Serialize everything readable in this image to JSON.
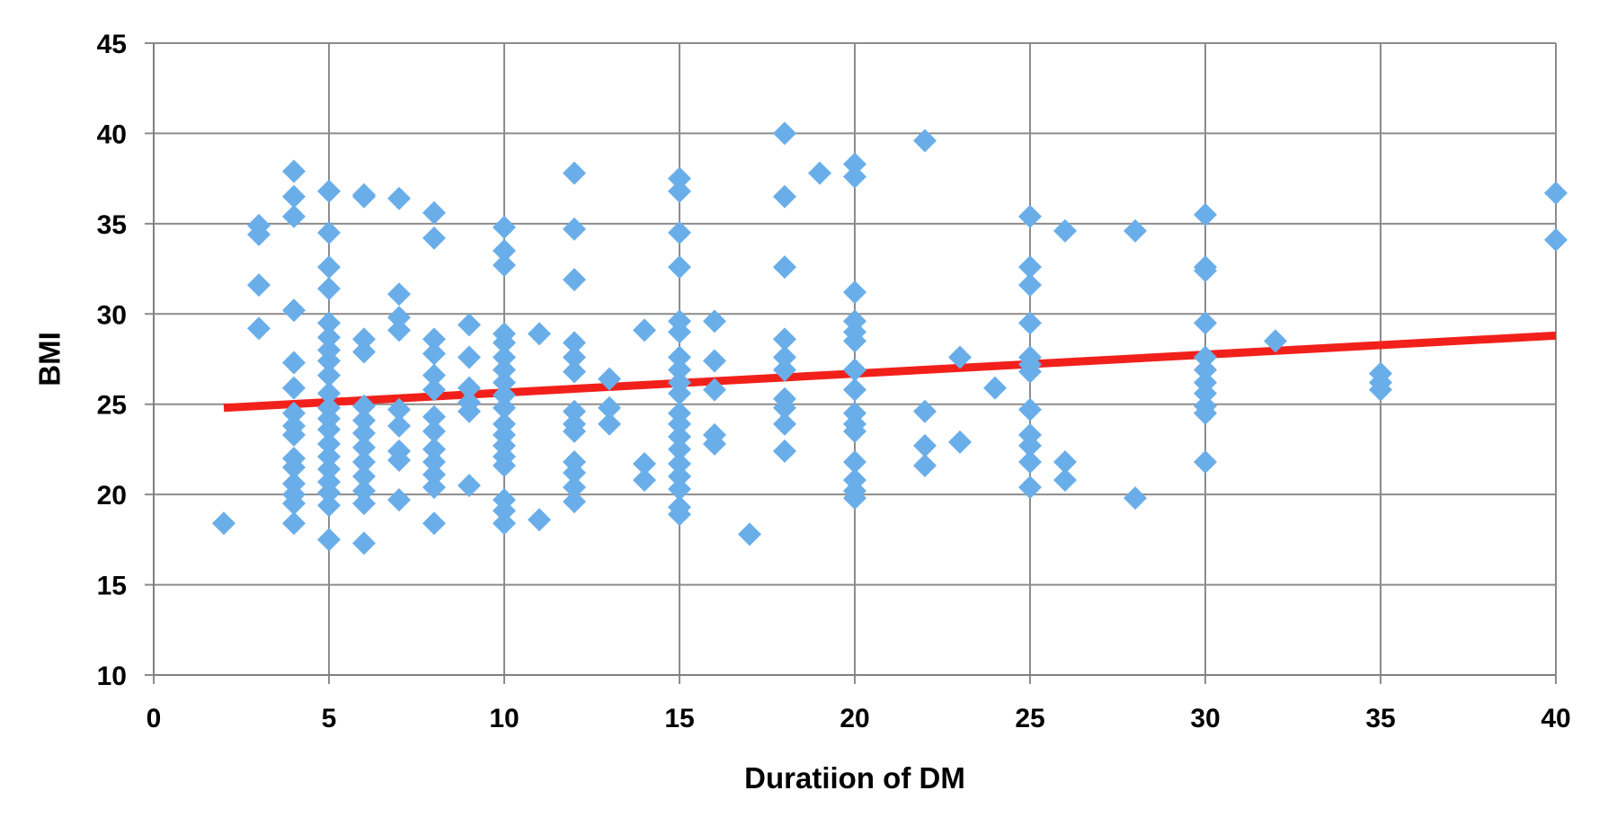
{
  "chart_data": {
    "type": "scatter",
    "xlabel": "Duratiion  of DM",
    "ylabel": "BMI",
    "xlim": [
      0,
      40
    ],
    "ylim": [
      10,
      45
    ],
    "x_ticks": [
      0,
      5,
      10,
      15,
      20,
      25,
      30,
      35,
      40
    ],
    "y_ticks": [
      10,
      15,
      20,
      25,
      30,
      35,
      40,
      45
    ],
    "grid": true,
    "legend": "none",
    "marker": "diamond",
    "colors": {
      "points": "#6aaee9",
      "trendline": "#f2201b",
      "grid": "#8c8c8c"
    },
    "trendline": {
      "x": [
        2,
        40
      ],
      "y": [
        24.8,
        28.8
      ]
    },
    "series": [
      {
        "points": [
          [
            2,
            18.4
          ],
          [
            3,
            34.9
          ],
          [
            3,
            34.4
          ],
          [
            3,
            31.6
          ],
          [
            3,
            29.2
          ],
          [
            4,
            37.9
          ],
          [
            4,
            36.5
          ],
          [
            4,
            35.4
          ],
          [
            4,
            30.2
          ],
          [
            4,
            27.3
          ],
          [
            4,
            25.9
          ],
          [
            4,
            24.5
          ],
          [
            4,
            23.8
          ],
          [
            4,
            23.3
          ],
          [
            4,
            22.0
          ],
          [
            4,
            21.5
          ],
          [
            4,
            20.6
          ],
          [
            4,
            20.0
          ],
          [
            4,
            19.5
          ],
          [
            4,
            18.4
          ],
          [
            5,
            36.8
          ],
          [
            5,
            34.5
          ],
          [
            5,
            32.6
          ],
          [
            5,
            31.4
          ],
          [
            5,
            29.5
          ],
          [
            5,
            28.7
          ],
          [
            5,
            28.0
          ],
          [
            5,
            27.4
          ],
          [
            5,
            26.6
          ],
          [
            5,
            25.6
          ],
          [
            5,
            24.8
          ],
          [
            5,
            24.2
          ],
          [
            5,
            23.6
          ],
          [
            5,
            22.8
          ],
          [
            5,
            22.1
          ],
          [
            5,
            21.4
          ],
          [
            5,
            20.7
          ],
          [
            5,
            20.1
          ],
          [
            5,
            19.4
          ],
          [
            5,
            17.5
          ],
          [
            6,
            36.6
          ],
          [
            6,
            36.5
          ],
          [
            6,
            28.6
          ],
          [
            6,
            27.9
          ],
          [
            6,
            24.9
          ],
          [
            6,
            24.1
          ],
          [
            6,
            23.4
          ],
          [
            6,
            22.6
          ],
          [
            6,
            21.8
          ],
          [
            6,
            21.0
          ],
          [
            6,
            20.2
          ],
          [
            6,
            19.5
          ],
          [
            6,
            17.3
          ],
          [
            7,
            36.4
          ],
          [
            7,
            31.1
          ],
          [
            7,
            29.8
          ],
          [
            7,
            29.1
          ],
          [
            7,
            24.7
          ],
          [
            7,
            23.8
          ],
          [
            7,
            22.4
          ],
          [
            7,
            21.9
          ],
          [
            7,
            19.7
          ],
          [
            8,
            35.6
          ],
          [
            8,
            34.2
          ],
          [
            8,
            28.6
          ],
          [
            8,
            27.8
          ],
          [
            8,
            26.6
          ],
          [
            8,
            25.8
          ],
          [
            8,
            24.3
          ],
          [
            8,
            23.5
          ],
          [
            8,
            22.5
          ],
          [
            8,
            21.8
          ],
          [
            8,
            21.1
          ],
          [
            8,
            20.4
          ],
          [
            8,
            18.4
          ],
          [
            9,
            29.4
          ],
          [
            9,
            27.6
          ],
          [
            9,
            25.9
          ],
          [
            9,
            25.1
          ],
          [
            9,
            24.6
          ],
          [
            9,
            20.5
          ],
          [
            10,
            34.8
          ],
          [
            10,
            33.5
          ],
          [
            10,
            32.7
          ],
          [
            10,
            28.9
          ],
          [
            10,
            28.4
          ],
          [
            10,
            27.6
          ],
          [
            10,
            26.9
          ],
          [
            10,
            26.2
          ],
          [
            10,
            25.5
          ],
          [
            10,
            24.8
          ],
          [
            10,
            23.9
          ],
          [
            10,
            23.3
          ],
          [
            10,
            22.7
          ],
          [
            10,
            22.1
          ],
          [
            10,
            21.6
          ],
          [
            10,
            19.7
          ],
          [
            10,
            19.1
          ],
          [
            10,
            18.4
          ],
          [
            11,
            28.9
          ],
          [
            11,
            18.6
          ],
          [
            12,
            37.8
          ],
          [
            12,
            34.7
          ],
          [
            12,
            31.9
          ],
          [
            12,
            28.4
          ],
          [
            12,
            27.6
          ],
          [
            12,
            26.8
          ],
          [
            12,
            24.6
          ],
          [
            12,
            23.9
          ],
          [
            12,
            23.5
          ],
          [
            12,
            21.8
          ],
          [
            12,
            21.2
          ],
          [
            12,
            20.4
          ],
          [
            12,
            19.6
          ],
          [
            13,
            26.4
          ],
          [
            13,
            24.8
          ],
          [
            13,
            23.9
          ],
          [
            14,
            29.1
          ],
          [
            14,
            21.7
          ],
          [
            14,
            20.8
          ],
          [
            15,
            37.5
          ],
          [
            15,
            36.8
          ],
          [
            15,
            34.5
          ],
          [
            15,
            32.6
          ],
          [
            15,
            29.6
          ],
          [
            15,
            29.0
          ],
          [
            15,
            27.6
          ],
          [
            15,
            26.9
          ],
          [
            15,
            26.2
          ],
          [
            15,
            25.6
          ],
          [
            15,
            24.5
          ],
          [
            15,
            23.9
          ],
          [
            15,
            23.2
          ],
          [
            15,
            22.5
          ],
          [
            15,
            21.7
          ],
          [
            15,
            21.0
          ],
          [
            15,
            20.3
          ],
          [
            15,
            19.3
          ],
          [
            15,
            18.9
          ],
          [
            16,
            29.6
          ],
          [
            16,
            27.4
          ],
          [
            16,
            25.8
          ],
          [
            16,
            23.3
          ],
          [
            16,
            22.8
          ],
          [
            17,
            17.8
          ],
          [
            18,
            40.0
          ],
          [
            18,
            36.5
          ],
          [
            18,
            32.6
          ],
          [
            18,
            28.6
          ],
          [
            18,
            27.6
          ],
          [
            18,
            26.9
          ],
          [
            18,
            25.3
          ],
          [
            18,
            24.8
          ],
          [
            18,
            23.9
          ],
          [
            18,
            22.4
          ],
          [
            19,
            37.8
          ],
          [
            20,
            38.3
          ],
          [
            20,
            37.6
          ],
          [
            20,
            31.2
          ],
          [
            20,
            29.6
          ],
          [
            20,
            29.0
          ],
          [
            20,
            28.5
          ],
          [
            20,
            26.9
          ],
          [
            20,
            25.8
          ],
          [
            20,
            24.5
          ],
          [
            20,
            23.9
          ],
          [
            20,
            23.5
          ],
          [
            20,
            21.8
          ],
          [
            20,
            20.8
          ],
          [
            20,
            20.2
          ],
          [
            20,
            19.8
          ],
          [
            22,
            39.6
          ],
          [
            22,
            24.6
          ],
          [
            22,
            22.7
          ],
          [
            22,
            21.6
          ],
          [
            23,
            27.6
          ],
          [
            23,
            22.9
          ],
          [
            24,
            25.9
          ],
          [
            25,
            35.4
          ],
          [
            25,
            32.6
          ],
          [
            25,
            31.6
          ],
          [
            25,
            29.5
          ],
          [
            25,
            27.6
          ],
          [
            25,
            27.2
          ],
          [
            25,
            26.8
          ],
          [
            25,
            24.7
          ],
          [
            25,
            23.3
          ],
          [
            25,
            22.7
          ],
          [
            25,
            21.8
          ],
          [
            25,
            20.4
          ],
          [
            26,
            34.6
          ],
          [
            26,
            21.8
          ],
          [
            26,
            20.8
          ],
          [
            28,
            34.6
          ],
          [
            28,
            19.8
          ],
          [
            30,
            35.5
          ],
          [
            30,
            32.6
          ],
          [
            30,
            32.4
          ],
          [
            30,
            29.5
          ],
          [
            30,
            27.6
          ],
          [
            30,
            26.9
          ],
          [
            30,
            26.2
          ],
          [
            30,
            25.6
          ],
          [
            30,
            24.9
          ],
          [
            30,
            24.5
          ],
          [
            30,
            21.8
          ],
          [
            32,
            28.5
          ],
          [
            35,
            26.7
          ],
          [
            35,
            26.2
          ],
          [
            35,
            25.8
          ],
          [
            40,
            36.7
          ],
          [
            40,
            34.1
          ]
        ]
      }
    ]
  }
}
